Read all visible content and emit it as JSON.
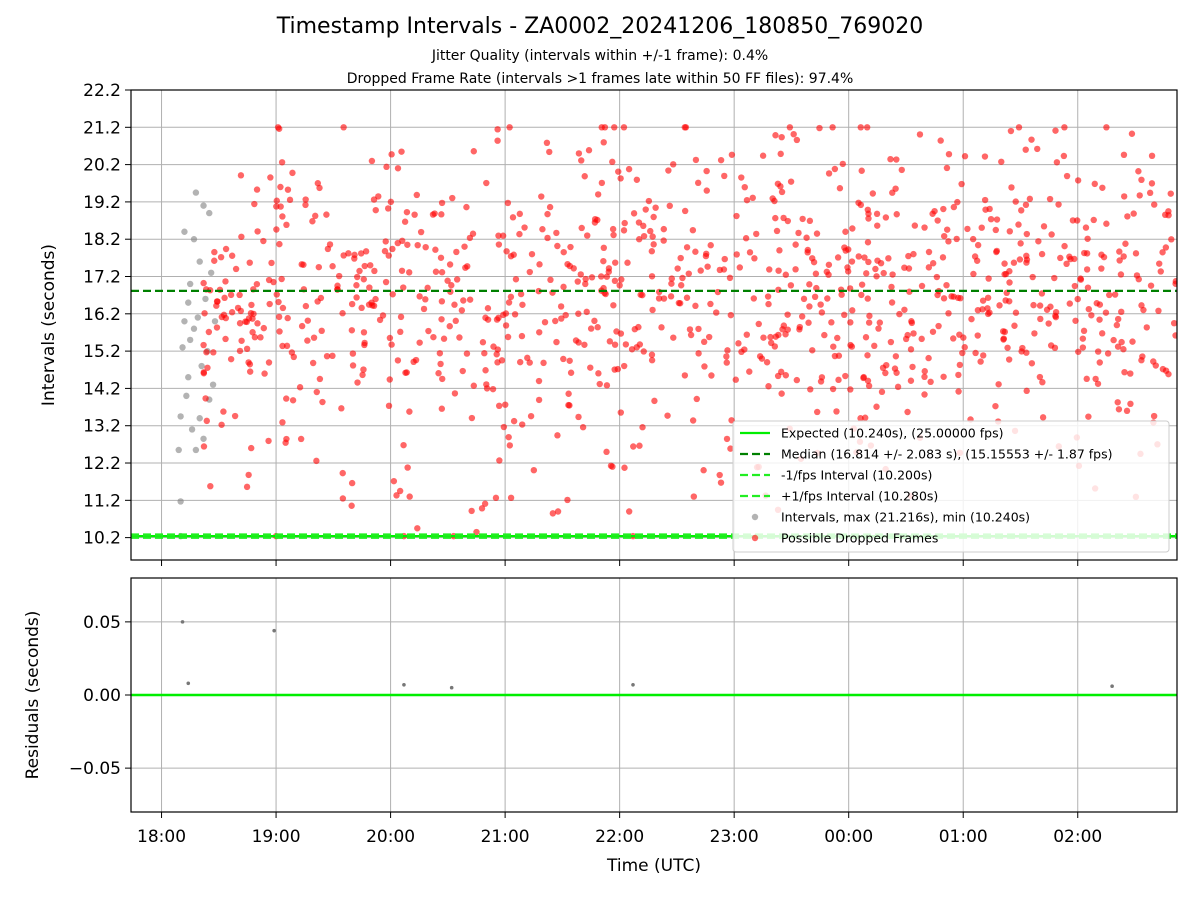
{
  "title": "Timestamp Intervals - ZA0002_20241206_180850_769020",
  "subtitle_1": "Jitter Quality (intervals within +/-1 frame): 0.4%",
  "subtitle_2": "Dropped Frame Rate (intervals >1 frames late within 50 FF files): 97.4%",
  "colors": {
    "expected": "#00ee00",
    "median": "#008000",
    "fps_interval": "#22ee22",
    "intervals": "#808080",
    "dropped": "#ff0000",
    "grid": "#b0b0b0"
  },
  "chart_data": [
    {
      "type": "scatter",
      "ylabel": "Intervals (seconds)",
      "xlim": [
        "17:44",
        "02:52"
      ],
      "ylim": [
        9.6,
        22.2
      ],
      "yticks": [
        "10.2",
        "11.2",
        "12.2",
        "13.2",
        "14.2",
        "15.2",
        "16.2",
        "17.2",
        "18.2",
        "19.2",
        "20.2",
        "21.2",
        "22.2"
      ],
      "grid": true,
      "legend_position": "lower-right",
      "legend": [
        "Expected (10.240s), (25.00000 fps)",
        "Median (16.814 +/- 2.083 s), (15.15553 +/- 1.87 fps)",
        "-1/fps Interval (10.200s)",
        "+1/fps Interval (10.280s)",
        "Intervals, max (21.216s), min (10.240s)",
        "Possible Dropped Frames"
      ],
      "lines": [
        {
          "name": "Expected",
          "y": 10.24
        },
        {
          "name": "Median",
          "y": 16.814
        },
        {
          "name": "-1/fps Interval",
          "y": 10.2
        },
        {
          "name": "+1/fps Interval",
          "y": 10.28
        }
      ],
      "series": [
        {
          "name": "Intervals",
          "points": [
            [
              "18:09",
              12.55
            ],
            [
              "18:10",
              11.17
            ],
            [
              "18:10",
              10.24
            ],
            [
              "18:10",
              13.45
            ],
            [
              "18:11",
              15.3
            ],
            [
              "18:12",
              18.4
            ],
            [
              "18:13",
              14.0
            ],
            [
              "18:14",
              16.5
            ],
            [
              "18:14",
              14.5
            ],
            [
              "18:15",
              17.0
            ],
            [
              "18:16",
              13.1
            ],
            [
              "18:17",
              18.2
            ],
            [
              "18:17",
              15.8
            ],
            [
              "18:18",
              19.45
            ],
            [
              "18:18",
              12.55
            ],
            [
              "18:19",
              16.1
            ],
            [
              "18:20",
              13.4
            ],
            [
              "18:20",
              17.6
            ],
            [
              "18:21",
              14.8
            ],
            [
              "18:22",
              19.1
            ],
            [
              "18:22",
              12.85
            ],
            [
              "18:23",
              16.6
            ],
            [
              "18:24",
              15.2
            ],
            [
              "18:25",
              18.9
            ],
            [
              "18:25",
              13.9
            ],
            [
              "18:26",
              17.3
            ],
            [
              "18:27",
              14.3
            ],
            [
              "18:28",
              16.0
            ],
            [
              "18:12",
              16.0
            ],
            [
              "18:15",
              15.5
            ]
          ]
        },
        {
          "name": "Possible Dropped Frames",
          "seed": 7,
          "start": "18:22",
          "end": "02:52",
          "count": 1040,
          "ymin": 10.9,
          "ymax": 21.2,
          "center": 16.8,
          "spread": 2.1,
          "extra_points": [
            [
              "19:00",
              10.24
            ],
            [
              "20:07",
              10.24
            ],
            [
              "20:33",
              10.24
            ],
            [
              "22:07",
              10.24
            ],
            [
              "20:05",
              11.45
            ],
            [
              "20:10",
              11.3
            ],
            [
              "20:14",
              10.45
            ],
            [
              "20:45",
              10.35
            ],
            [
              "21:25",
              10.85
            ],
            [
              "22:05",
              10.9
            ],
            [
              "19:35",
              11.25
            ],
            [
              "01:25",
              21.1
            ]
          ]
        }
      ]
    },
    {
      "type": "scatter",
      "xlabel": "Time (UTC)",
      "ylabel": "Residuals (seconds)",
      "xlim": [
        "17:44",
        "02:52"
      ],
      "ylim": [
        -0.08,
        0.08
      ],
      "xticks": [
        "18:00",
        "19:00",
        "20:00",
        "21:00",
        "22:00",
        "23:00",
        "00:00",
        "01:00",
        "02:00"
      ],
      "yticks": [
        "0.05",
        "0.00",
        "−0.05"
      ],
      "grid": true,
      "baseline": 0.0,
      "series": [
        {
          "name": "Residuals",
          "points": [
            [
              "18:11",
              0.05
            ],
            [
              "18:14",
              0.008
            ],
            [
              "18:59",
              0.044
            ],
            [
              "20:07",
              0.007
            ],
            [
              "20:32",
              0.005
            ],
            [
              "22:07",
              0.007
            ],
            [
              "02:18",
              0.006
            ]
          ]
        }
      ]
    }
  ]
}
